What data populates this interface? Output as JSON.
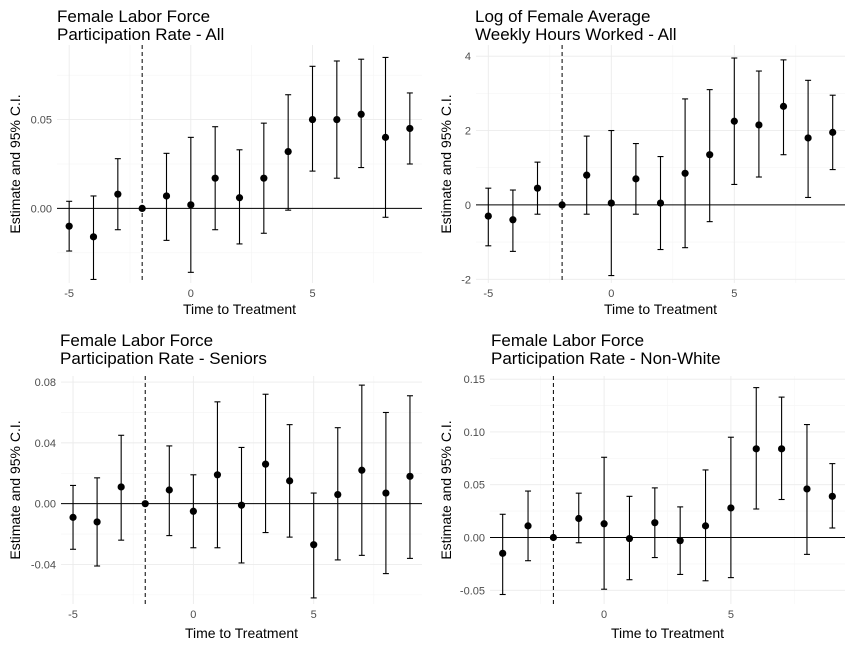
{
  "chart_data": [
    {
      "type": "scatter",
      "title_lines": [
        "Female Labor Force",
        "Participation Rate - All"
      ],
      "xlabel": "Time to Treatment",
      "ylabel": "Estimate and 95% C.I.",
      "xlim": [
        -5.5,
        9.5
      ],
      "ylim": [
        -0.042,
        0.092
      ],
      "x_ticks": [
        -5,
        0,
        5
      ],
      "x_tick_labels": [
        "-5",
        "0",
        "5"
      ],
      "y_ticks": [
        0.0,
        0.05
      ],
      "y_tick_labels": [
        "0.00",
        "0.05"
      ],
      "reference_x": -2,
      "points": [
        {
          "x": -5,
          "y": -0.01,
          "lo": -0.024,
          "hi": 0.004
        },
        {
          "x": -4,
          "y": -0.016,
          "lo": -0.04,
          "hi": 0.007
        },
        {
          "x": -3,
          "y": 0.008,
          "lo": -0.012,
          "hi": 0.028
        },
        {
          "x": -2,
          "y": 0.0,
          "lo": 0.0,
          "hi": 0.0
        },
        {
          "x": -1,
          "y": 0.007,
          "lo": -0.018,
          "hi": 0.031
        },
        {
          "x": 0,
          "y": 0.002,
          "lo": -0.036,
          "hi": 0.04
        },
        {
          "x": 1,
          "y": 0.017,
          "lo": -0.012,
          "hi": 0.046
        },
        {
          "x": 2,
          "y": 0.006,
          "lo": -0.02,
          "hi": 0.033
        },
        {
          "x": 3,
          "y": 0.017,
          "lo": -0.014,
          "hi": 0.048
        },
        {
          "x": 4,
          "y": 0.032,
          "lo": -0.001,
          "hi": 0.064
        },
        {
          "x": 5,
          "y": 0.05,
          "lo": 0.021,
          "hi": 0.08
        },
        {
          "x": 6,
          "y": 0.05,
          "lo": 0.017,
          "hi": 0.083
        },
        {
          "x": 7,
          "y": 0.053,
          "lo": 0.023,
          "hi": 0.084
        },
        {
          "x": 8,
          "y": 0.04,
          "lo": -0.005,
          "hi": 0.085
        },
        {
          "x": 9,
          "y": 0.045,
          "lo": 0.025,
          "hi": 0.065
        }
      ]
    },
    {
      "type": "scatter",
      "title_lines": [
        "Log of Female Average",
        "Weekly Hours Worked - All"
      ],
      "xlabel": "Time to Treatment",
      "ylabel": "Estimate and 95% C.I.",
      "xlim": [
        -5.5,
        9.5
      ],
      "ylim": [
        -2.1,
        4.3
      ],
      "x_ticks": [
        -5,
        0,
        5
      ],
      "x_tick_labels": [
        "-5",
        "0",
        "5"
      ],
      "y_ticks": [
        -2,
        0,
        2,
        4
      ],
      "y_tick_labels": [
        "-2",
        "0",
        "2",
        "4"
      ],
      "reference_x": -2,
      "points": [
        {
          "x": -5,
          "y": -0.3,
          "lo": -1.1,
          "hi": 0.45
        },
        {
          "x": -4,
          "y": -0.4,
          "lo": -1.25,
          "hi": 0.4
        },
        {
          "x": -3,
          "y": 0.45,
          "lo": -0.25,
          "hi": 1.15
        },
        {
          "x": -2,
          "y": 0.0,
          "lo": 0.0,
          "hi": 0.0
        },
        {
          "x": -1,
          "y": 0.8,
          "lo": -0.25,
          "hi": 1.85
        },
        {
          "x": 0,
          "y": 0.05,
          "lo": -1.9,
          "hi": 2.0
        },
        {
          "x": 1,
          "y": 0.7,
          "lo": -0.25,
          "hi": 1.65
        },
        {
          "x": 2,
          "y": 0.05,
          "lo": -1.2,
          "hi": 1.3
        },
        {
          "x": 3,
          "y": 0.85,
          "lo": -1.15,
          "hi": 2.85
        },
        {
          "x": 4,
          "y": 1.35,
          "lo": -0.45,
          "hi": 3.1
        },
        {
          "x": 5,
          "y": 2.25,
          "lo": 0.55,
          "hi": 3.95
        },
        {
          "x": 6,
          "y": 2.15,
          "lo": 0.75,
          "hi": 3.6
        },
        {
          "x": 7,
          "y": 2.65,
          "lo": 1.35,
          "hi": 3.9
        },
        {
          "x": 8,
          "y": 1.8,
          "lo": 0.2,
          "hi": 3.35
        },
        {
          "x": 9,
          "y": 1.95,
          "lo": 0.95,
          "hi": 2.95
        }
      ]
    },
    {
      "type": "scatter",
      "title_lines": [
        "Female Labor Force",
        "Participation Rate - Seniors"
      ],
      "xlabel": "Time to Treatment",
      "ylabel": "Estimate and 95% C.I.",
      "xlim": [
        -5.5,
        9.5
      ],
      "ylim": [
        -0.066,
        0.084
      ],
      "x_ticks": [
        -5,
        0,
        5
      ],
      "x_tick_labels": [
        "-5",
        "0",
        "5"
      ],
      "y_ticks": [
        -0.04,
        0.0,
        0.04,
        0.08
      ],
      "y_tick_labels": [
        "-0.04",
        "0.00",
        "0.04",
        "0.08"
      ],
      "reference_x": -2,
      "points": [
        {
          "x": -5,
          "y": -0.009,
          "lo": -0.03,
          "hi": 0.012
        },
        {
          "x": -4,
          "y": -0.012,
          "lo": -0.041,
          "hi": 0.017
        },
        {
          "x": -3,
          "y": 0.011,
          "lo": -0.024,
          "hi": 0.045
        },
        {
          "x": -2,
          "y": 0.0,
          "lo": 0.0,
          "hi": 0.0
        },
        {
          "x": -1,
          "y": 0.009,
          "lo": -0.021,
          "hi": 0.038
        },
        {
          "x": 0,
          "y": -0.005,
          "lo": -0.029,
          "hi": 0.019
        },
        {
          "x": 1,
          "y": 0.019,
          "lo": -0.029,
          "hi": 0.067
        },
        {
          "x": 2,
          "y": -0.001,
          "lo": -0.039,
          "hi": 0.037
        },
        {
          "x": 3,
          "y": 0.026,
          "lo": -0.019,
          "hi": 0.072
        },
        {
          "x": 4,
          "y": 0.015,
          "lo": -0.022,
          "hi": 0.052
        },
        {
          "x": 5,
          "y": -0.027,
          "lo": -0.062,
          "hi": 0.007
        },
        {
          "x": 6,
          "y": 0.006,
          "lo": -0.037,
          "hi": 0.05
        },
        {
          "x": 7,
          "y": 0.022,
          "lo": -0.034,
          "hi": 0.078
        },
        {
          "x": 8,
          "y": 0.007,
          "lo": -0.046,
          "hi": 0.06
        },
        {
          "x": 9,
          "y": 0.018,
          "lo": -0.036,
          "hi": 0.071
        }
      ]
    },
    {
      "type": "scatter",
      "title_lines": [
        "Female Labor Force",
        "Participation Rate - Non-White"
      ],
      "xlabel": "Time to Treatment",
      "ylabel": "Estimate and 95% C.I.",
      "xlim": [
        -4.5,
        9.5
      ],
      "ylim": [
        -0.063,
        0.153
      ],
      "x_ticks": [
        0,
        5
      ],
      "x_tick_labels": [
        "0",
        "5"
      ],
      "y_ticks": [
        -0.05,
        0.0,
        0.05,
        0.1,
        0.15
      ],
      "y_tick_labels": [
        "-0.05",
        "0.00",
        "0.05",
        "0.10",
        "0.15"
      ],
      "reference_x": -2,
      "points": [
        {
          "x": -4,
          "y": -0.015,
          "lo": -0.054,
          "hi": 0.022
        },
        {
          "x": -3,
          "y": 0.011,
          "lo": -0.022,
          "hi": 0.044
        },
        {
          "x": -2,
          "y": 0.0,
          "lo": 0.0,
          "hi": 0.0
        },
        {
          "x": -1,
          "y": 0.018,
          "lo": -0.005,
          "hi": 0.042
        },
        {
          "x": 0,
          "y": 0.013,
          "lo": -0.049,
          "hi": 0.076
        },
        {
          "x": 1,
          "y": -0.001,
          "lo": -0.04,
          "hi": 0.039
        },
        {
          "x": 2,
          "y": 0.014,
          "lo": -0.019,
          "hi": 0.047
        },
        {
          "x": 3,
          "y": -0.003,
          "lo": -0.035,
          "hi": 0.029
        },
        {
          "x": 4,
          "y": 0.011,
          "lo": -0.041,
          "hi": 0.064
        },
        {
          "x": 5,
          "y": 0.028,
          "lo": -0.038,
          "hi": 0.095
        },
        {
          "x": 6,
          "y": 0.084,
          "lo": 0.027,
          "hi": 0.142
        },
        {
          "x": 7,
          "y": 0.084,
          "lo": 0.036,
          "hi": 0.133
        },
        {
          "x": 8,
          "y": 0.046,
          "lo": -0.016,
          "hi": 0.107
        },
        {
          "x": 9,
          "y": 0.039,
          "lo": 0.009,
          "hi": 0.07
        }
      ]
    }
  ]
}
